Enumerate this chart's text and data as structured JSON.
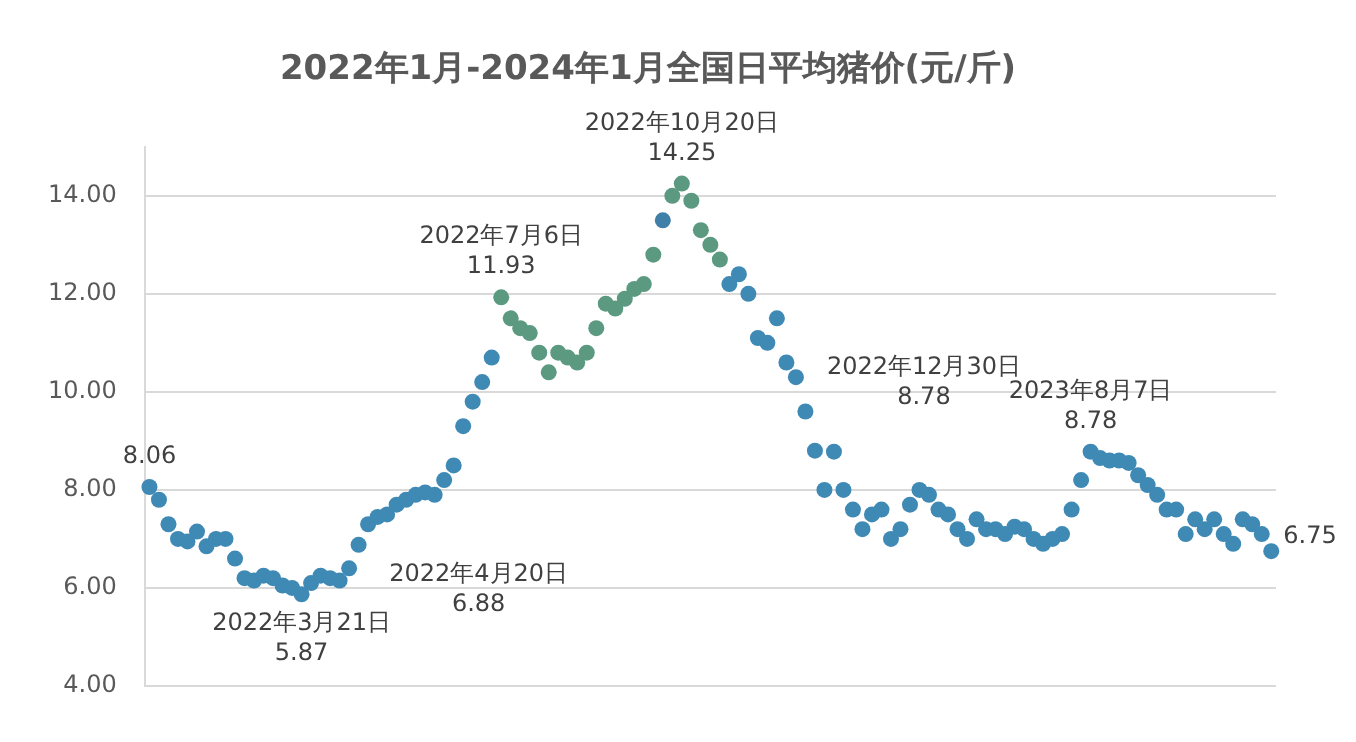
{
  "chart_data": {
    "type": "scatter",
    "title": "2022年1月-2024年1月全国日平均猪价(元/斤)",
    "categories": [
      null,
      null,
      null,
      null,
      null,
      null,
      null,
      null,
      null,
      null,
      null,
      null,
      null,
      null,
      null,
      null,
      null,
      null,
      null,
      null,
      null,
      null,
      null,
      null,
      null,
      null,
      null,
      null,
      null,
      null,
      null,
      null,
      null,
      null,
      null,
      null,
      null,
      null,
      null,
      null,
      null,
      null,
      null,
      null,
      null,
      null,
      null,
      null,
      null,
      null,
      null,
      null,
      null,
      null,
      null,
      null,
      null,
      null,
      null,
      null,
      null,
      null,
      null,
      null,
      null,
      null,
      null,
      null,
      null,
      null,
      null,
      null,
      null,
      null,
      null,
      null,
      null,
      null,
      null,
      null,
      null,
      null,
      null,
      null,
      null,
      null,
      null,
      null,
      null,
      null,
      null,
      null,
      null,
      null,
      null,
      null,
      null,
      null,
      null,
      null,
      null,
      null,
      null,
      null,
      null,
      null,
      null,
      null,
      null,
      null,
      null,
      null,
      null,
      null,
      null,
      null,
      null,
      null,
      null
    ],
    "values": [
      8.06,
      7.8,
      7.3,
      7.0,
      6.95,
      7.15,
      6.85,
      7.0,
      7.0,
      6.6,
      6.2,
      6.15,
      6.25,
      6.2,
      6.05,
      6.0,
      5.87,
      6.1,
      6.25,
      6.2,
      6.15,
      6.4,
      6.88,
      7.3,
      7.45,
      7.5,
      7.7,
      7.8,
      7.9,
      7.95,
      7.9,
      8.2,
      8.5,
      9.3,
      9.8,
      10.2,
      10.7,
      11.93,
      11.5,
      11.3,
      11.2,
      10.8,
      10.4,
      10.8,
      10.7,
      10.6,
      10.8,
      11.3,
      11.8,
      11.7,
      11.9,
      12.1,
      12.2,
      12.8,
      13.5,
      14.0,
      14.25,
      13.9,
      13.3,
      13.0,
      12.7,
      12.2,
      12.4,
      12.0,
      11.1,
      11.0,
      11.5,
      10.6,
      10.3,
      9.6,
      8.8,
      8.0,
      8.78,
      8.0,
      7.6,
      7.2,
      7.5,
      7.6,
      7.0,
      7.2,
      7.7,
      8.0,
      7.9,
      7.6,
      7.5,
      7.2,
      7.0,
      7.4,
      7.2,
      7.2,
      7.1,
      7.25,
      7.2,
      7.0,
      6.9,
      7.0,
      7.1,
      7.6,
      8.2,
      8.78,
      8.65,
      8.6,
      8.6,
      8.55,
      8.3,
      8.1,
      7.9,
      7.6,
      7.6,
      7.1,
      7.4,
      7.2,
      7.4,
      7.1,
      6.9,
      7.4,
      7.3,
      7.1,
      6.75
    ],
    "colors": [
      "#3f89b5",
      "#3f89b5",
      "#3f89b5",
      "#3f89b5",
      "#3f89b5",
      "#3f89b5",
      "#3f89b5",
      "#3f89b5",
      "#3f89b5",
      "#3f89b5",
      "#3f89b5",
      "#3f89b5",
      "#3f89b5",
      "#3f89b5",
      "#3f89b5",
      "#3f89b5",
      "#3f89b5",
      "#3f89b5",
      "#3f89b5",
      "#3f89b5",
      "#3f89b5",
      "#3f89b5",
      "#3f89b5",
      "#3f89b5",
      "#3f89b5",
      "#3f89b5",
      "#3f89b5",
      "#3f89b5",
      "#3f89b5",
      "#3f89b5",
      "#3f89b5",
      "#3f89b5",
      "#3f89b5",
      "#3f89b5",
      "#3f89b5",
      "#3f89b5",
      "#3f89b5",
      "#5b9a80",
      "#5b9a80",
      "#5b9a80",
      "#5b9a80",
      "#5b9a80",
      "#5b9a80",
      "#5b9a80",
      "#5b9a80",
      "#5b9a80",
      "#5b9a80",
      "#5b9a80",
      "#5b9a80",
      "#5b9a80",
      "#5b9a80",
      "#5b9a80",
      "#5b9a80",
      "#5b9a80",
      "#3f7fa8",
      "#5b9a80",
      "#5b9a80",
      "#5b9a80",
      "#5b9a80",
      "#5b9a80",
      "#5b9a80",
      "#3f89b5",
      "#3f89b5",
      "#3f89b5",
      "#3f89b5",
      "#3f89b5",
      "#3f89b5",
      "#3f89b5",
      "#3f89b5",
      "#3f89b5",
      "#3f89b5",
      "#3f89b5",
      "#3f89b5",
      "#3f89b5",
      "#3f89b5",
      "#3f89b5",
      "#3f89b5",
      "#3f89b5",
      "#3f89b5",
      "#3f89b5",
      "#3f89b5",
      "#3f89b5",
      "#3f89b5",
      "#3f89b5",
      "#3f89b5",
      "#3f89b5",
      "#3f89b5",
      "#3f89b5",
      "#3f89b5",
      "#3f89b5",
      "#3f89b5",
      "#3f89b5",
      "#3f89b5",
      "#3f89b5",
      "#3f89b5",
      "#3f89b5",
      "#3f89b5",
      "#3f89b5",
      "#3f89b5",
      "#3f89b5",
      "#3f89b5",
      "#3f89b5",
      "#3f89b5",
      "#3f89b5",
      "#3f89b5",
      "#3f89b5",
      "#3f89b5",
      "#3f89b5",
      "#3f89b5",
      "#3f89b5",
      "#3f89b5",
      "#3f89b5",
      "#3f89b5",
      "#3f89b5",
      "#3f89b5",
      "#3f89b5",
      "#3f89b5",
      "#3f89b5",
      "#3f89b5"
    ],
    "value_labels": [
      "8.06",
      null,
      null,
      null,
      null,
      null,
      null,
      null,
      null,
      null,
      null,
      null,
      null,
      null,
      null,
      null,
      "2022年3月21日\n5.87",
      null,
      null,
      null,
      null,
      null,
      "2022年4月20日\n6.88",
      null,
      null,
      null,
      null,
      null,
      null,
      null,
      null,
      null,
      null,
      null,
      null,
      null,
      null,
      "2022年7月6日\n11.93",
      null,
      null,
      null,
      null,
      null,
      null,
      null,
      null,
      null,
      null,
      null,
      null,
      null,
      null,
      null,
      null,
      null,
      null,
      "2022年10月20日\n14.25",
      null,
      null,
      null,
      null,
      null,
      null,
      null,
      null,
      null,
      null,
      null,
      null,
      null,
      null,
      null,
      "2022年12月30日\n8.78",
      null,
      null,
      null,
      null,
      null,
      null,
      null,
      null,
      null,
      null,
      null,
      null,
      null,
      null,
      null,
      null,
      null,
      null,
      null,
      null,
      null,
      null,
      null,
      null,
      null,
      null,
      "2023年8月7日\n8.78",
      null,
      null,
      null,
      null,
      null,
      null,
      null,
      null,
      null,
      null,
      null,
      null,
      null,
      null,
      null,
      null,
      null,
      null,
      "6.75"
    ],
    "ylim": [
      4,
      15
    ],
    "yticks": [
      {
        "value": 4,
        "label": "4.00"
      },
      {
        "value": 6,
        "label": "6.00"
      },
      {
        "value": 8,
        "label": "8.00"
      },
      {
        "value": 10,
        "label": "10.00"
      },
      {
        "value": 12,
        "label": "12.00"
      },
      {
        "value": 14,
        "label": "14.00"
      }
    ],
    "grid": "y",
    "tick_labels": "y",
    "marker": "circle",
    "legend": false
  }
}
